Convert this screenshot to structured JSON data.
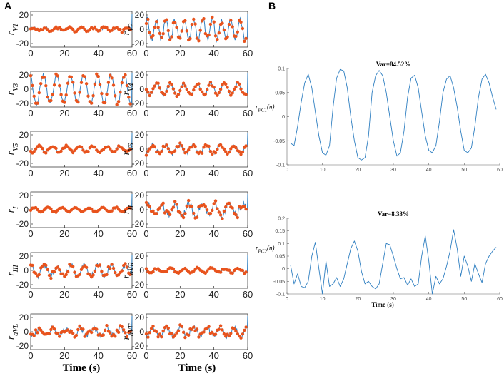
{
  "panels": {
    "a": "A",
    "b": "B"
  },
  "colors": {
    "line": "#2f7fc1",
    "marker": "#e8531d",
    "axis": "#262626"
  },
  "chart_data": [
    {
      "type": "line",
      "panel": "A",
      "lead": "V1",
      "ylabel": "r_{V1}",
      "ylim": [
        -25,
        25
      ],
      "yticks": [
        -20,
        0,
        20
      ],
      "xlim": [
        0,
        60
      ],
      "xticks": [
        0,
        20,
        40,
        60
      ],
      "xlabel": "",
      "amp": 2.5,
      "period": 7,
      "noise": 2,
      "points": true
    },
    {
      "type": "line",
      "panel": "A",
      "lead": "V2",
      "ylabel": "r_{V2}",
      "ylim": [
        -25,
        25
      ],
      "yticks": [
        -20,
        0,
        20
      ],
      "xlim": [
        0,
        60
      ],
      "xticks": [
        0,
        20,
        40,
        60
      ],
      "xlabel": "",
      "amp": 14,
      "period": 5.5,
      "noise": 5,
      "points": true
    },
    {
      "type": "line",
      "panel": "A",
      "lead": "V3",
      "ylabel": "r_{V3}",
      "ylim": [
        -25,
        25
      ],
      "yticks": [
        -20,
        0,
        20
      ],
      "xlim": [
        0,
        60
      ],
      "xticks": [
        0,
        20,
        40,
        60
      ],
      "xlabel": "",
      "amp": 20,
      "period": 8,
      "noise": 3,
      "points": true
    },
    {
      "type": "line",
      "panel": "A",
      "lead": "V4",
      "ylabel": "r_{V4}",
      "ylim": [
        -25,
        25
      ],
      "yticks": [
        -20,
        0,
        20
      ],
      "xlim": [
        0,
        60
      ],
      "xticks": [
        0,
        20,
        40,
        60
      ],
      "xlabel": "",
      "amp": 8,
      "period": 8,
      "noise": 2,
      "points": true
    },
    {
      "type": "line",
      "panel": "A",
      "lead": "V5",
      "ylabel": "r_{V5}",
      "ylim": [
        -25,
        25
      ],
      "yticks": [
        -20,
        0,
        20
      ],
      "xlim": [
        0,
        60
      ],
      "xticks": [
        0,
        20,
        40,
        60
      ],
      "xlabel": "",
      "amp": 4,
      "period": 8,
      "noise": 1.5,
      "points": true
    },
    {
      "type": "line",
      "panel": "A",
      "lead": "V6",
      "ylabel": "r_{V6}",
      "ylim": [
        -25,
        25
      ],
      "yticks": [
        -20,
        0,
        20
      ],
      "xlim": [
        0,
        60
      ],
      "xticks": [
        0,
        20,
        40,
        60
      ],
      "xlabel": "",
      "amp": 6,
      "period": 8,
      "noise": 3,
      "points": true
    },
    {
      "type": "line",
      "panel": "A",
      "lead": "I",
      "ylabel": "r_{I}",
      "ylim": [
        -25,
        25
      ],
      "yticks": [
        -20,
        0,
        20
      ],
      "xlim": [
        0,
        60
      ],
      "xticks": [
        0,
        20,
        40,
        60
      ],
      "xlabel": "",
      "amp": 3,
      "period": 8,
      "noise": 1,
      "points": true
    },
    {
      "type": "line",
      "panel": "A",
      "lead": "II",
      "ylabel": "r_{II}",
      "ylim": [
        -25,
        25
      ],
      "yticks": [
        -20,
        0,
        20
      ],
      "xlim": [
        0,
        60
      ],
      "xticks": [
        0,
        20,
        40,
        60
      ],
      "xlabel": "",
      "amp": 8,
      "period": 8,
      "noise": 5,
      "points": true
    },
    {
      "type": "line",
      "panel": "A",
      "lead": "III",
      "ylabel": "r_{III}",
      "ylim": [
        -25,
        25
      ],
      "yticks": [
        -20,
        0,
        20
      ],
      "xlim": [
        0,
        60
      ],
      "xticks": [
        0,
        20,
        40,
        60
      ],
      "xlabel": "",
      "amp": 8,
      "period": 8,
      "noise": 4,
      "points": true
    },
    {
      "type": "line",
      "panel": "A",
      "lead": "aVR",
      "ylabel": "r_{aVR}",
      "ylim": [
        -25,
        25
      ],
      "yticks": [
        -20,
        0,
        20
      ],
      "xlim": [
        0,
        60
      ],
      "xticks": [
        0,
        20,
        40,
        60
      ],
      "xlabel": "",
      "amp": 3,
      "period": 8,
      "noise": 1.5,
      "points": true
    },
    {
      "type": "line",
      "panel": "A",
      "lead": "aVL",
      "ylabel": "r_{aVL}",
      "ylim": [
        -25,
        25
      ],
      "yticks": [
        -20,
        0,
        20
      ],
      "xlim": [
        0,
        60
      ],
      "xticks": [
        0,
        20,
        40,
        60
      ],
      "xlabel": "Time (s)",
      "amp": 5,
      "period": 8,
      "noise": 4,
      "points": true
    },
    {
      "type": "line",
      "panel": "A",
      "lead": "aVF",
      "ylabel": "r_{aVF}",
      "ylim": [
        -25,
        25
      ],
      "yticks": [
        -20,
        0,
        20
      ],
      "xlim": [
        0,
        60
      ],
      "xticks": [
        0,
        20,
        40,
        60
      ],
      "xlabel": "Time (s)",
      "amp": 6,
      "period": 8,
      "noise": 4,
      "points": true
    },
    {
      "type": "line",
      "panel": "B",
      "title": "Var=84.52%",
      "ylabel": "r_{PC1}(n)",
      "ylim": [
        -0.1,
        0.1
      ],
      "yticks": [
        -0.1,
        -0.05,
        0,
        0.05,
        0.1
      ],
      "ytick_labels": [
        "-0.1",
        "-0.05",
        "0",
        "0.05",
        "0.1"
      ],
      "xlim": [
        0,
        60
      ],
      "xticks": [
        0,
        10,
        20,
        30,
        40,
        50,
        60
      ],
      "xlabel": "",
      "x": [
        1,
        2,
        3,
        4,
        5,
        6,
        7,
        8,
        9,
        10,
        11,
        12,
        13,
        14,
        15,
        16,
        17,
        18,
        19,
        20,
        21,
        22,
        23,
        24,
        25,
        26,
        27,
        28,
        29,
        30,
        31,
        32,
        33,
        34,
        35,
        36,
        37,
        38,
        39,
        40,
        41,
        42,
        43,
        44,
        45,
        46,
        47,
        48,
        49,
        50,
        51,
        52,
        53,
        54,
        55,
        56,
        57,
        58,
        59
      ],
      "y": [
        -0.055,
        -0.06,
        -0.02,
        0.03,
        0.07,
        0.088,
        0.06,
        0.01,
        -0.04,
        -0.075,
        -0.08,
        -0.06,
        0.02,
        0.08,
        0.098,
        0.095,
        0.06,
        0.0,
        -0.05,
        -0.085,
        -0.09,
        -0.085,
        -0.04,
        0.05,
        0.085,
        0.096,
        0.085,
        0.05,
        0.0,
        -0.05,
        -0.082,
        -0.075,
        -0.03,
        0.04,
        0.08,
        0.086,
        0.06,
        0.01,
        -0.04,
        -0.07,
        -0.075,
        -0.06,
        -0.01,
        0.05,
        0.078,
        0.085,
        0.06,
        0.02,
        -0.03,
        -0.07,
        -0.075,
        -0.065,
        -0.02,
        0.04,
        0.078,
        0.088,
        0.07,
        0.04,
        0.015
      ]
    },
    {
      "type": "line",
      "panel": "B",
      "title": "Var=8.33%",
      "ylabel": "r_{PC2}(n)",
      "ylim": [
        -0.1,
        0.2
      ],
      "yticks": [
        -0.1,
        -0.05,
        0,
        0.05,
        0.1,
        0.15,
        0.2
      ],
      "ytick_labels": [
        "-0.1",
        "-0.05",
        "0",
        "0.05",
        "0.1",
        "0.15",
        "0.2"
      ],
      "xlim": [
        0,
        60
      ],
      "xticks": [
        0,
        10,
        20,
        30,
        40,
        50,
        60
      ],
      "xlabel": "Time (s)",
      "x": [
        1,
        2,
        3,
        4,
        5,
        6,
        7,
        8,
        9,
        10,
        11,
        12,
        13,
        14,
        15,
        16,
        17,
        18,
        19,
        20,
        21,
        22,
        23,
        24,
        25,
        26,
        27,
        28,
        29,
        30,
        31,
        32,
        33,
        34,
        35,
        36,
        37,
        38,
        39,
        40,
        41,
        42,
        43,
        44,
        45,
        46,
        47,
        48,
        49,
        50,
        51,
        52,
        53,
        54,
        55,
        56,
        57,
        58,
        59
      ],
      "y": [
        0.015,
        -0.06,
        -0.02,
        -0.07,
        -0.075,
        -0.05,
        0.05,
        0.105,
        0.0,
        -0.1,
        0.03,
        -0.07,
        -0.06,
        -0.035,
        -0.07,
        -0.04,
        0.02,
        0.08,
        0.11,
        0.07,
        -0.01,
        -0.06,
        -0.05,
        -0.07,
        -0.08,
        -0.06,
        0.02,
        0.1,
        0.095,
        0.05,
        0.0,
        -0.04,
        -0.035,
        -0.065,
        -0.04,
        -0.07,
        -0.06,
        0.05,
        0.13,
        0.03,
        -0.1,
        -0.03,
        -0.06,
        -0.04,
        0.01,
        0.07,
        0.155,
        0.08,
        -0.03,
        0.05,
        0.01,
        -0.05,
        0.02,
        -0.02,
        -0.055,
        0.02,
        0.05,
        0.07,
        0.085
      ]
    }
  ]
}
